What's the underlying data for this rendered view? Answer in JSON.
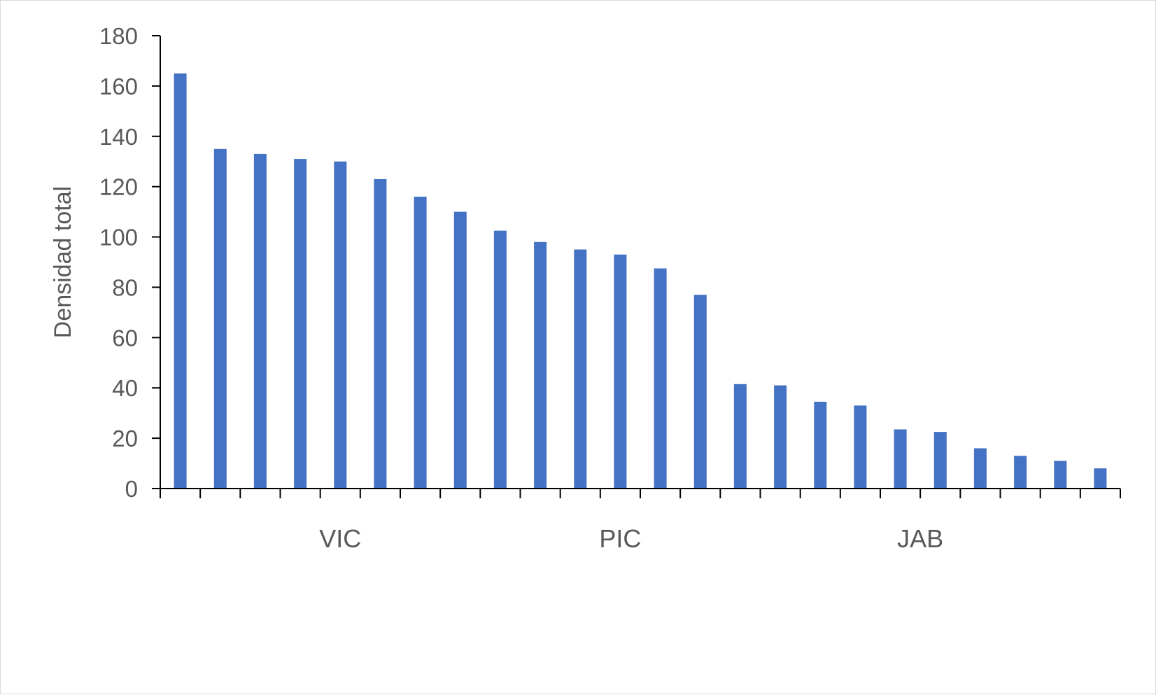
{
  "chart_data": {
    "type": "bar",
    "title": "",
    "xlabel": "",
    "ylabel": "Densidad total",
    "ylim": [
      0,
      180
    ],
    "yticks": [
      0,
      20,
      40,
      60,
      80,
      100,
      120,
      140,
      160,
      180
    ],
    "grid": false,
    "legend": "none",
    "bar_color": "#4472C4",
    "axis_color": "#000000",
    "text_color": "#595959",
    "values": [
      165,
      135,
      133,
      131,
      130,
      123,
      116,
      110,
      102.5,
      98,
      95,
      93,
      87.5,
      77,
      41.5,
      41,
      34.5,
      33,
      23.5,
      22.5,
      16,
      13,
      11,
      8
    ],
    "groups": [
      {
        "label": "VIC",
        "count": 9
      },
      {
        "label": "PIC",
        "count": 5
      },
      {
        "label": "JAB",
        "count": 10
      }
    ]
  }
}
